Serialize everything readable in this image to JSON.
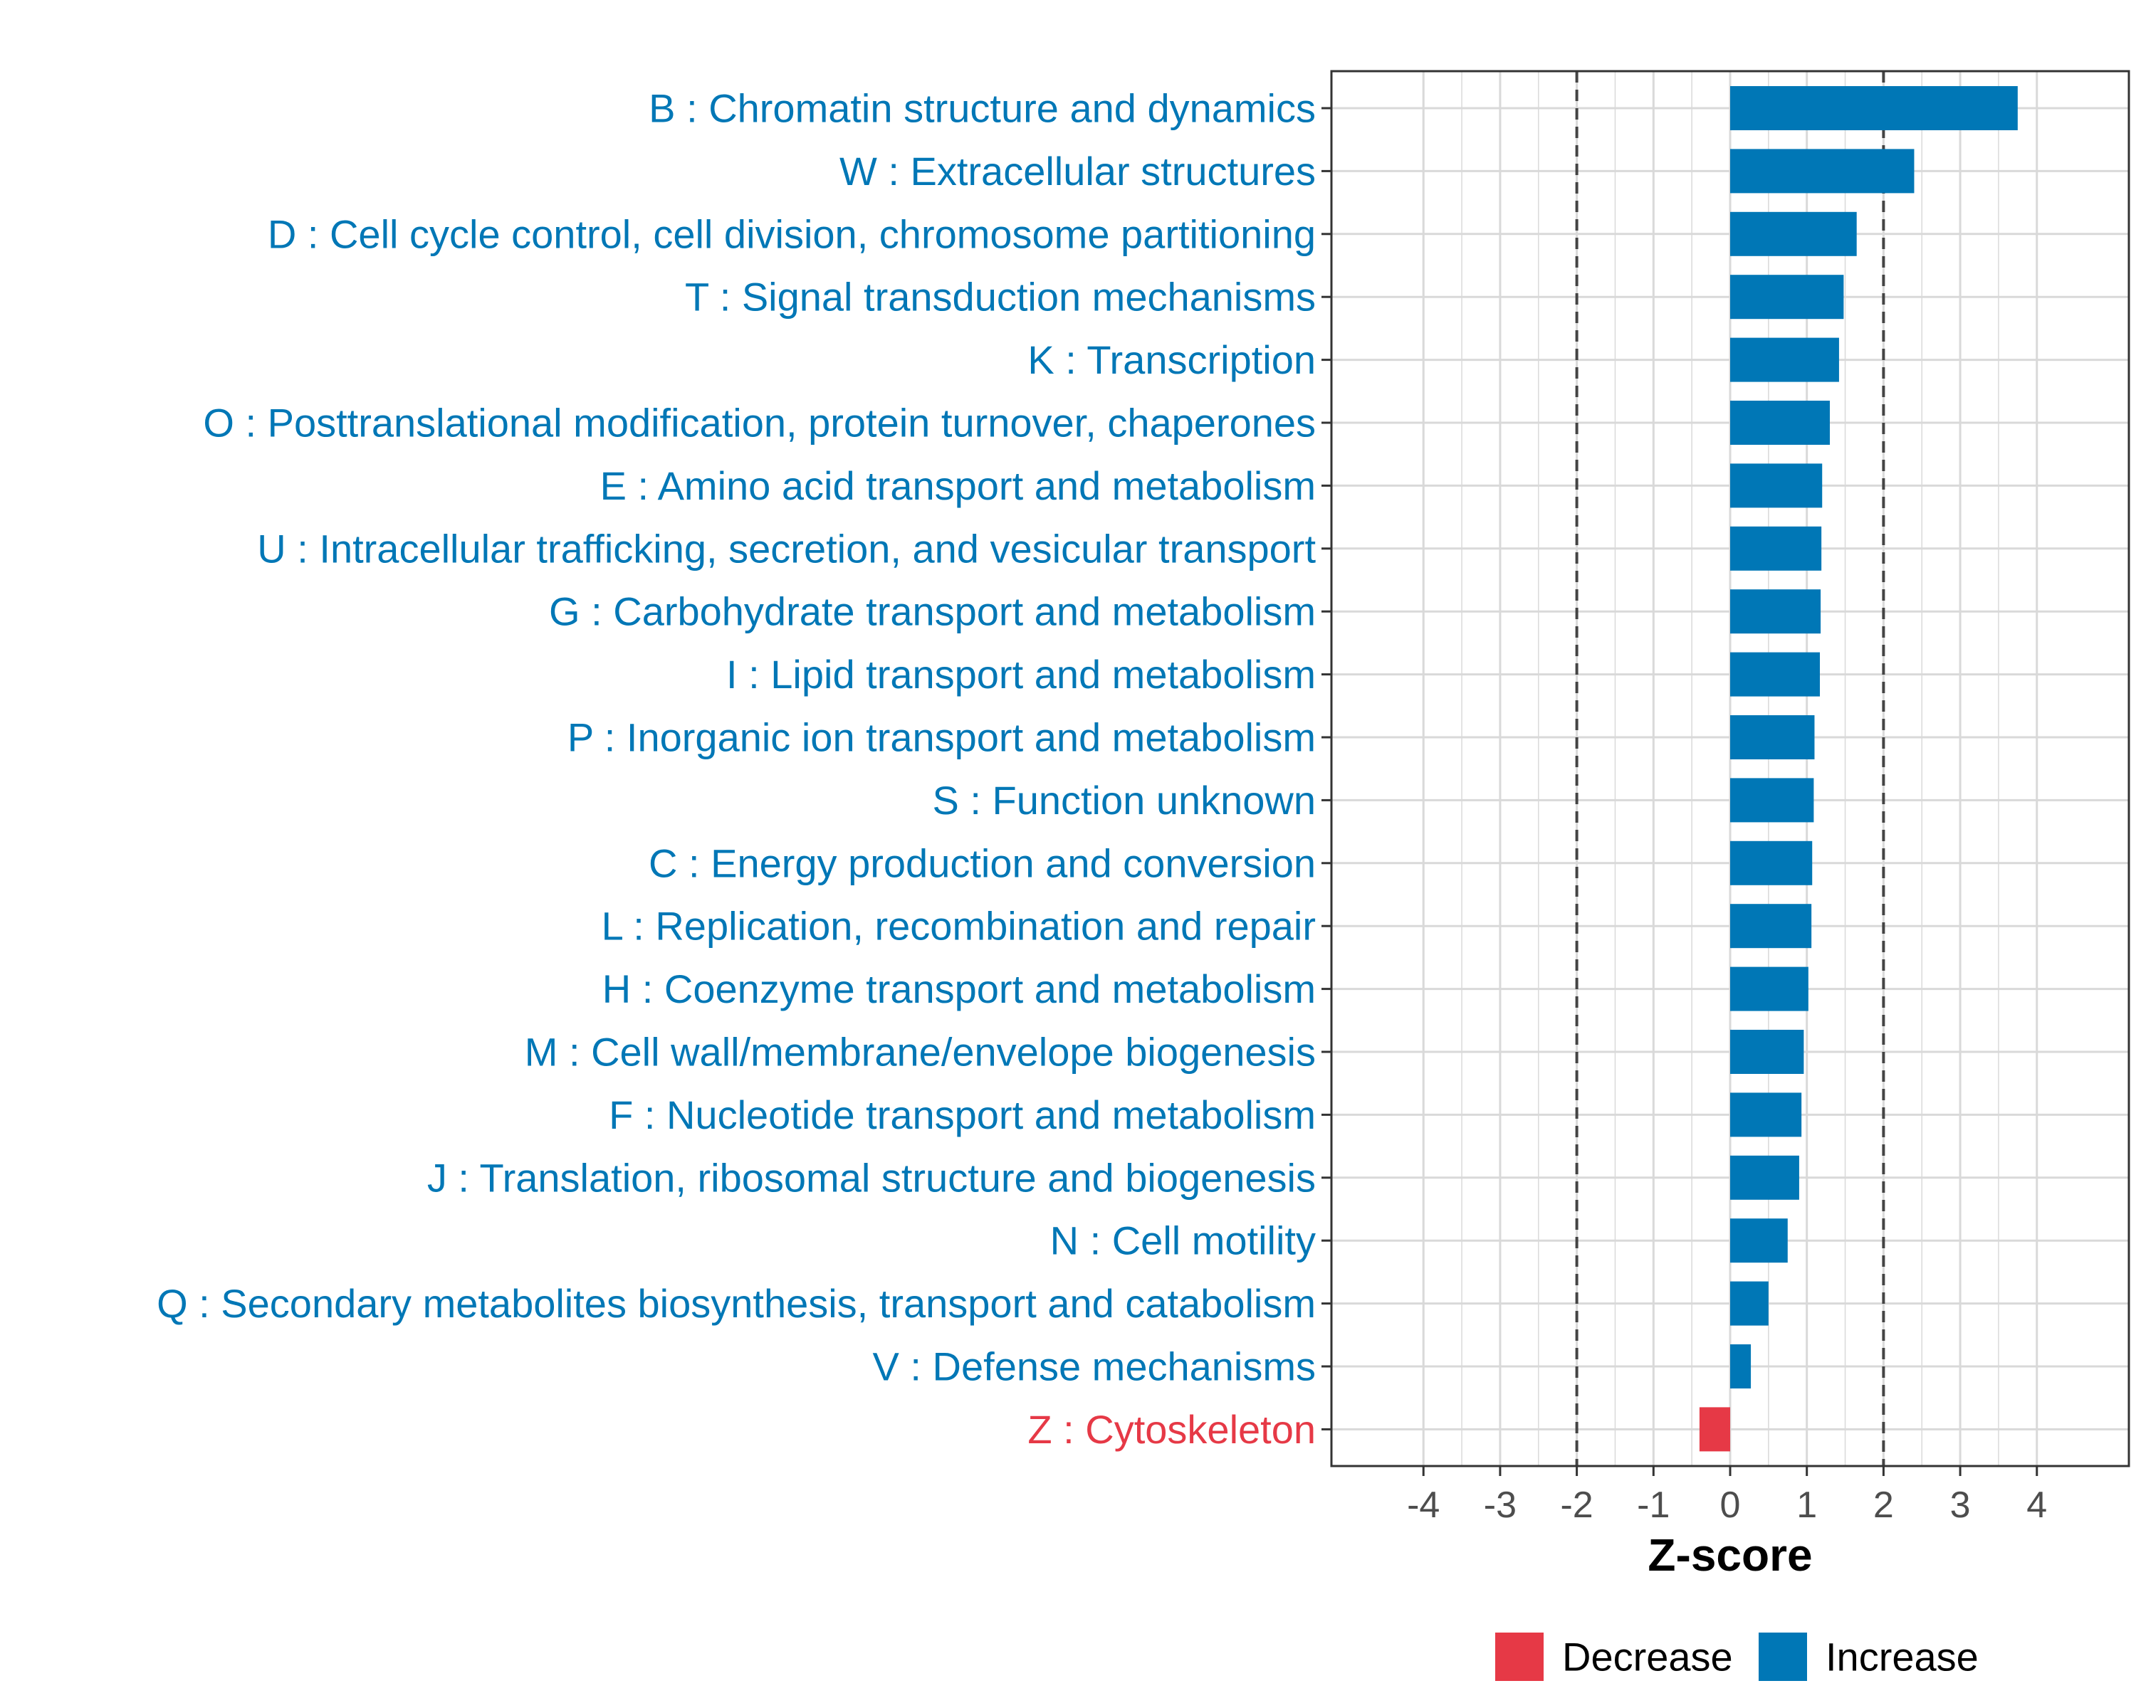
{
  "chart_data": {
    "type": "bar",
    "orientation": "horizontal",
    "xlabel": "Z-score",
    "ylabel": "",
    "xlim": [
      -5.2,
      5.2
    ],
    "xticks": [
      -4,
      -3,
      -2,
      -1,
      0,
      1,
      2,
      3,
      4
    ],
    "threshold_lines": [
      -2,
      2
    ],
    "grid": true,
    "legend_position": "bottom",
    "colors": {
      "Decrease": "#E63946",
      "Increase": "#0077B6"
    },
    "legend": [
      {
        "label": "Decrease",
        "color": "#E63946"
      },
      {
        "label": "Increase",
        "color": "#0077B6"
      }
    ],
    "categories": [
      "B : Chromatin structure and dynamics",
      "W : Extracellular structures",
      "D : Cell cycle control, cell division, chromosome partitioning",
      "T : Signal transduction mechanisms",
      "K : Transcription",
      "O : Posttranslational modification, protein turnover, chaperones",
      "E : Amino acid transport and metabolism",
      "U : Intracellular trafficking, secretion, and vesicular transport",
      "G : Carbohydrate transport and metabolism",
      "I : Lipid transport and metabolism",
      "P : Inorganic ion transport and metabolism",
      "S : Function unknown",
      "C : Energy production and conversion",
      "L : Replication, recombination and repair",
      "H : Coenzyme transport and metabolism",
      "M : Cell wall/membrane/envelope biogenesis",
      "F : Nucleotide transport and metabolism",
      "J : Translation, ribosomal structure and biogenesis",
      "N : Cell motility",
      "Q : Secondary metabolites biosynthesis, transport and catabolism",
      "V : Defense mechanisms",
      "Z : Cytoskeleton"
    ],
    "values": [
      3.75,
      2.4,
      1.65,
      1.48,
      1.42,
      1.3,
      1.2,
      1.19,
      1.18,
      1.17,
      1.1,
      1.09,
      1.07,
      1.06,
      1.02,
      0.96,
      0.93,
      0.9,
      0.75,
      0.5,
      0.27,
      -0.4
    ],
    "direction": [
      "Increase",
      "Increase",
      "Increase",
      "Increase",
      "Increase",
      "Increase",
      "Increase",
      "Increase",
      "Increase",
      "Increase",
      "Increase",
      "Increase",
      "Increase",
      "Increase",
      "Increase",
      "Increase",
      "Increase",
      "Increase",
      "Increase",
      "Increase",
      "Increase",
      "Decrease"
    ]
  }
}
